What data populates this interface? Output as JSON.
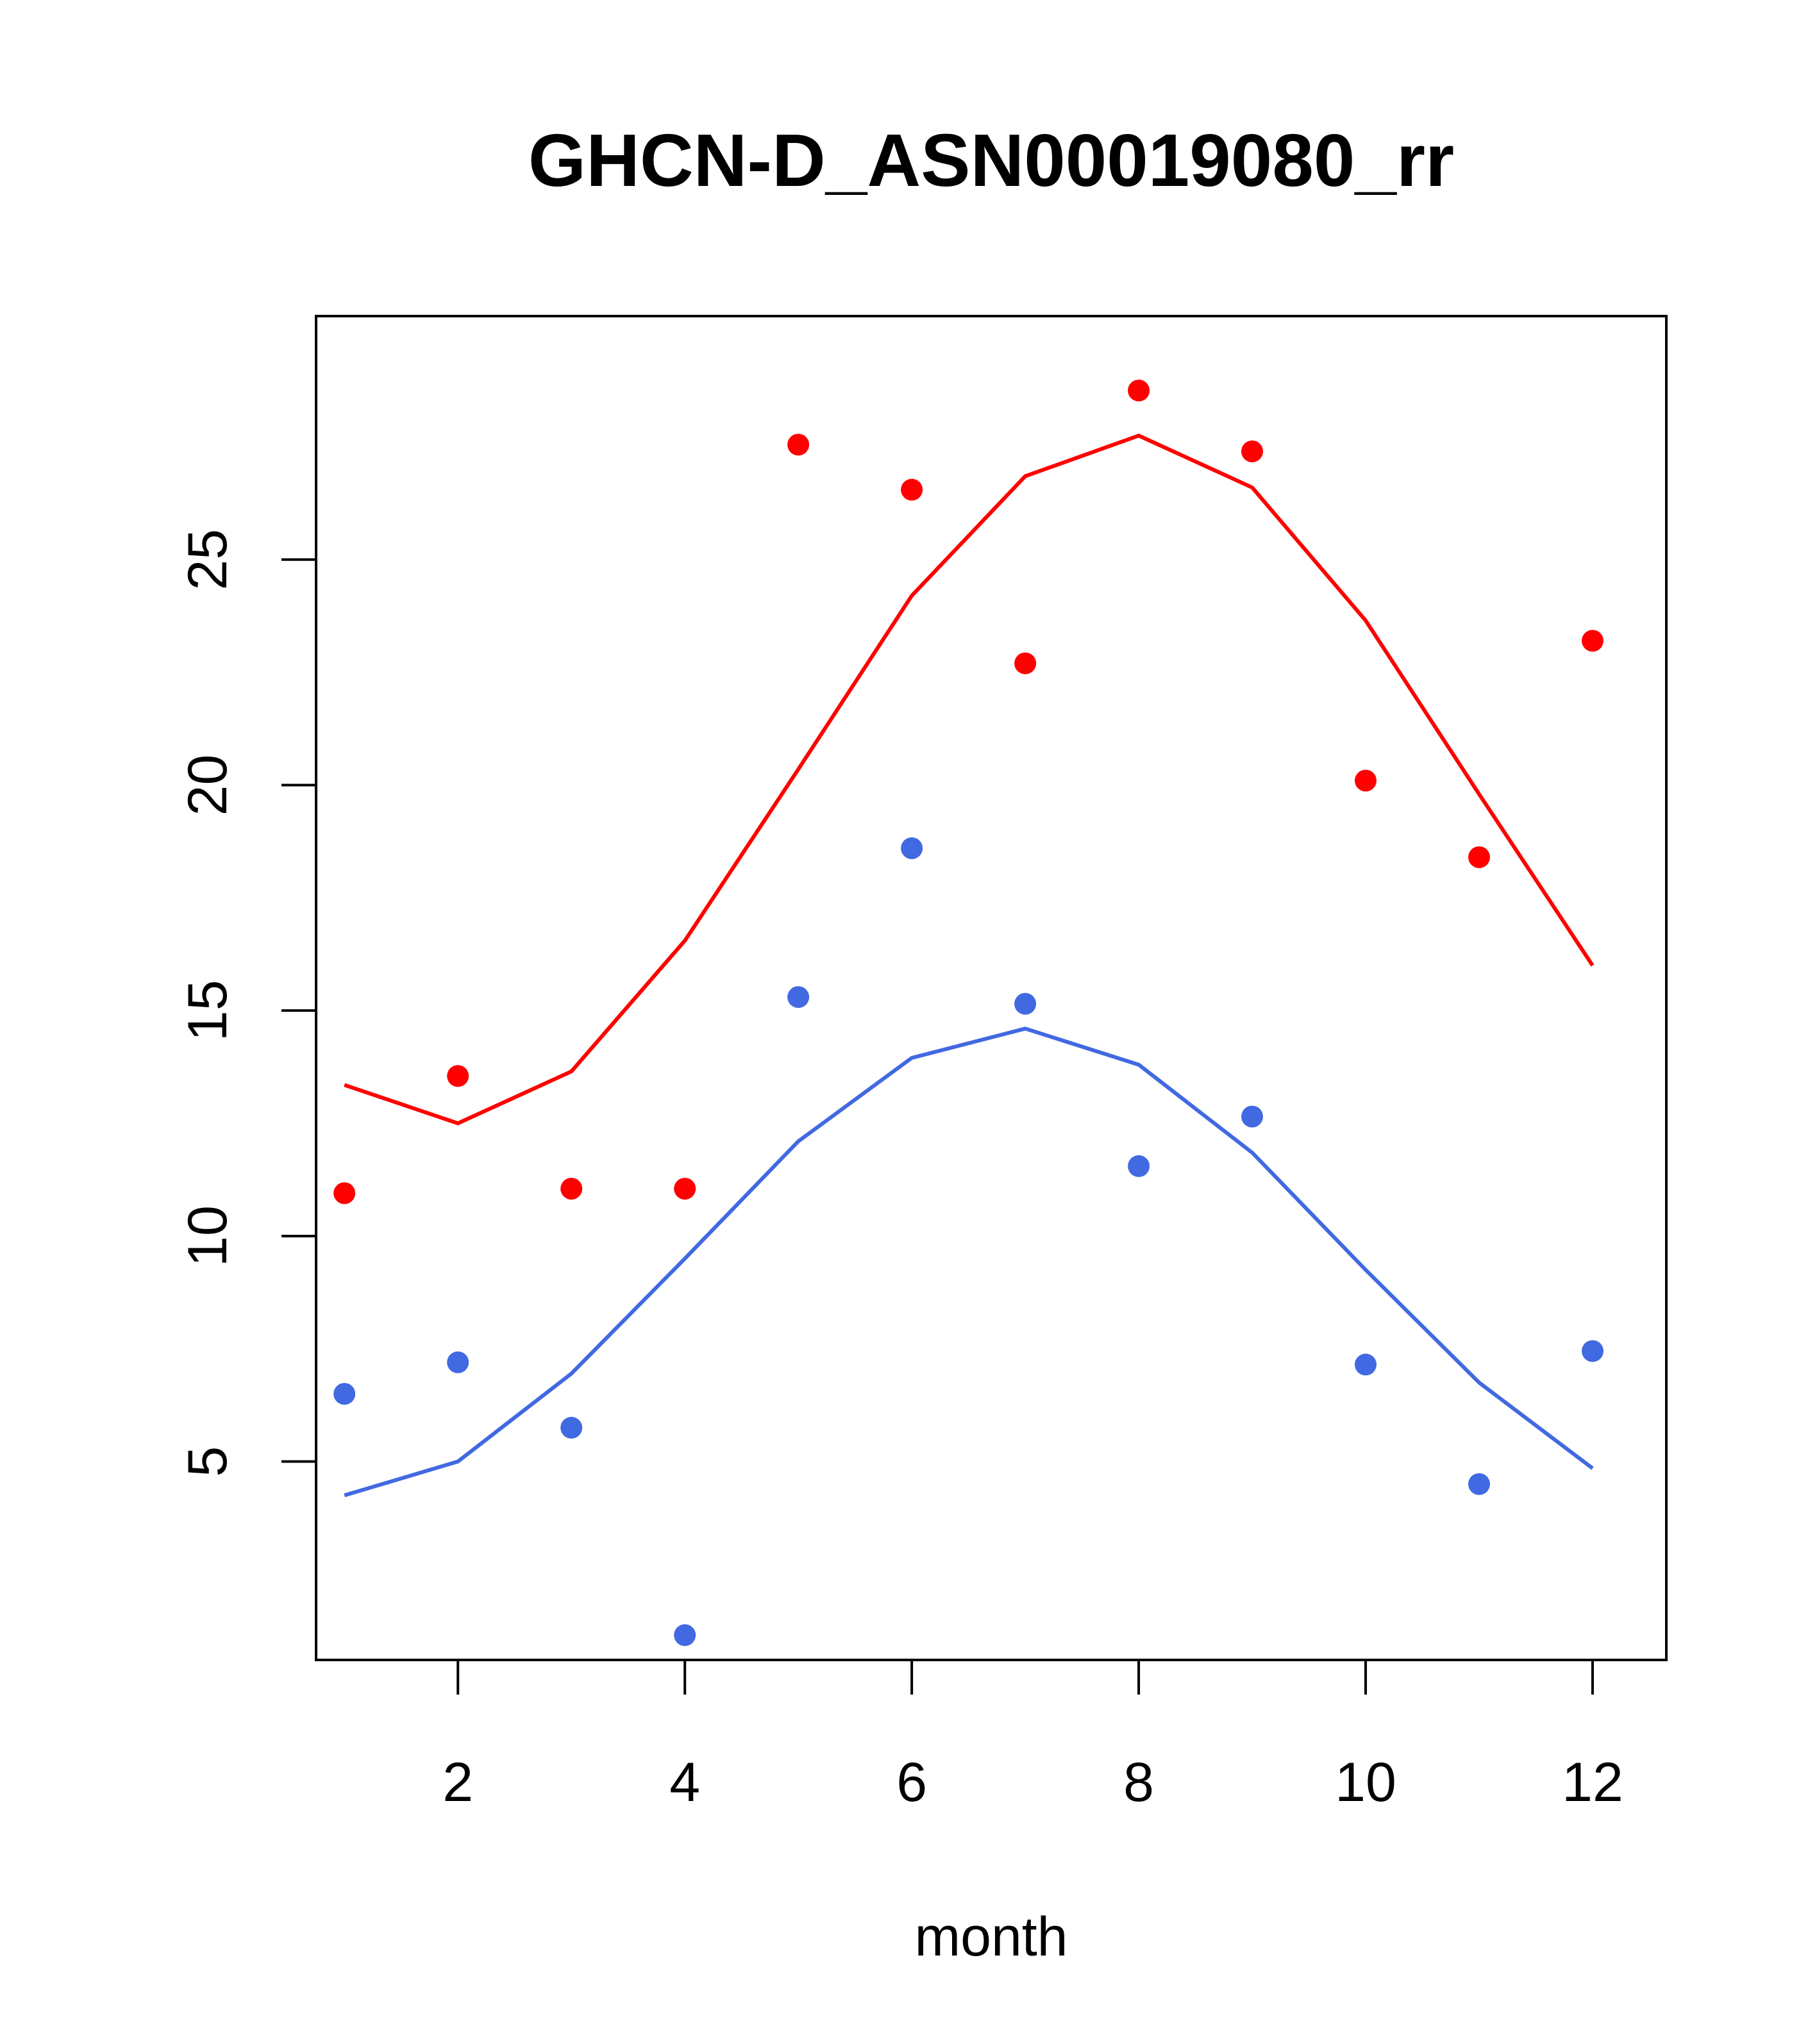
{
  "chart_data": {
    "type": "scatter",
    "title": "GHCN-D_ASN00019080_rr",
    "xlabel": "month",
    "ylabel": "",
    "xlim": [
      0.75,
      12.65
    ],
    "ylim": [
      0.6,
      30.4
    ],
    "x_ticks": [
      2,
      4,
      6,
      8,
      10,
      12
    ],
    "y_ticks": [
      5,
      10,
      15,
      20,
      25
    ],
    "grid": false,
    "legend": "none",
    "series": [
      {
        "name": "red points",
        "kind": "points",
        "color": "#FF0000",
        "x": [
          1,
          2,
          3,
          4,
          5,
          6,
          7,
          8,
          9,
          10,
          11,
          12
        ],
        "values": [
          10.95,
          13.55,
          11.05,
          11.05,
          27.55,
          26.55,
          22.7,
          28.75,
          27.4,
          20.1,
          18.4,
          23.2
        ]
      },
      {
        "name": "red line",
        "kind": "line",
        "color": "#FF0000",
        "x": [
          1,
          2,
          3,
          4,
          5,
          6,
          7,
          8,
          9,
          10,
          11,
          12
        ],
        "values": [
          13.35,
          12.5,
          13.65,
          16.55,
          20.35,
          24.2,
          26.85,
          27.75,
          26.6,
          23.65,
          19.8,
          16.0
        ]
      },
      {
        "name": "blue points",
        "kind": "points",
        "color": "#4169E1",
        "x": [
          1,
          2,
          3,
          4,
          5,
          6,
          7,
          8,
          9,
          10,
          11,
          12
        ],
        "values": [
          6.5,
          7.2,
          5.75,
          1.15,
          15.3,
          18.6,
          15.15,
          11.55,
          12.65,
          7.15,
          4.5,
          7.45
        ]
      },
      {
        "name": "blue line",
        "kind": "line",
        "color": "#4169E1",
        "x": [
          1,
          2,
          3,
          4,
          5,
          6,
          7,
          8,
          9,
          10,
          11,
          12
        ],
        "values": [
          4.25,
          5.0,
          6.95,
          9.5,
          12.1,
          13.95,
          14.6,
          13.8,
          11.85,
          9.25,
          6.75,
          4.85
        ]
      }
    ]
  }
}
